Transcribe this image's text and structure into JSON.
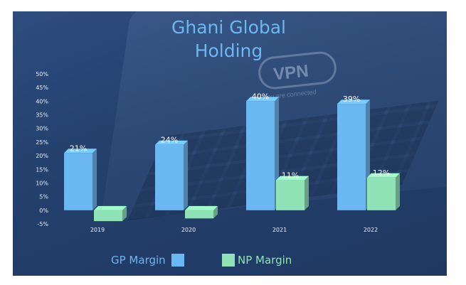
{
  "chart_data": {
    "type": "bar",
    "title": [
      "Ghani Global",
      "Holding"
    ],
    "categories": [
      "2019",
      "2020",
      "2021",
      "2022"
    ],
    "series": [
      {
        "name": "GP Margin",
        "values": [
          21,
          24,
          40,
          39
        ],
        "color": "#6bb7f2",
        "labels": [
          "21%",
          "24%",
          "40%",
          "39%"
        ]
      },
      {
        "name": "NP Margin",
        "values": [
          -4,
          -3,
          11,
          12
        ],
        "color": "#8fe3b6",
        "labels": [
          "",
          "",
          "11%",
          "12%"
        ]
      }
    ],
    "yticks": [
      "-5%",
      "0%",
      "5%",
      "10%",
      "15%",
      "20%",
      "25%",
      "30%",
      "35%",
      "40%",
      "45%",
      "50%"
    ],
    "ylim": [
      -5,
      50
    ],
    "ytick_values": [
      -5,
      0,
      5,
      10,
      15,
      20,
      25,
      30,
      35,
      40,
      45,
      50
    ],
    "legend_position": "bottom"
  },
  "background": {
    "vpn_text": "VPN",
    "subtext": "You are connected"
  }
}
